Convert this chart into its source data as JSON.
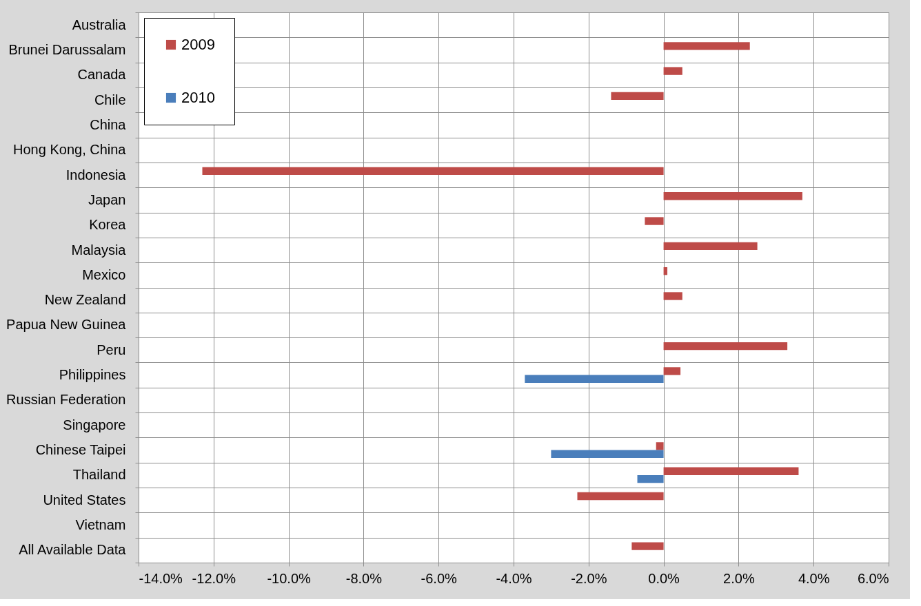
{
  "chart_data": {
    "type": "bar",
    "orientation": "horizontal",
    "categories": [
      "Australia",
      "Brunei Darussalam",
      "Canada",
      "Chile",
      "China",
      "Hong Kong, China",
      "Indonesia",
      "Japan",
      "Korea",
      "Malaysia",
      "Mexico",
      "New Zealand",
      "Papua New Guinea",
      "Peru",
      "Philippines",
      "Russian Federation",
      "Singapore",
      "Chinese Taipei",
      "Thailand",
      "United States",
      "Vietnam",
      "All Available Data"
    ],
    "series": [
      {
        "name": "2009",
        "color": "#be4b48",
        "values": [
          null,
          2.3,
          0.5,
          -1.4,
          null,
          null,
          -12.3,
          3.7,
          -0.5,
          2.5,
          0.1,
          0.5,
          null,
          3.3,
          0.45,
          null,
          null,
          -0.2,
          3.6,
          -2.3,
          null,
          -0.85
        ]
      },
      {
        "name": "2010",
        "color": "#4a7ebb",
        "values": [
          null,
          null,
          null,
          null,
          null,
          null,
          null,
          null,
          null,
          null,
          null,
          null,
          null,
          null,
          -3.7,
          null,
          null,
          -3.0,
          -0.7,
          null,
          null,
          null
        ]
      }
    ],
    "xlim": [
      -14,
      6
    ],
    "xticks": [
      {
        "value": -14,
        "label": "-14.0%"
      },
      {
        "value": -12,
        "label": "-12.0%"
      },
      {
        "value": -10,
        "label": "-10.0%"
      },
      {
        "value": -8,
        "label": "-8.0%"
      },
      {
        "value": -6,
        "label": "-6.0%"
      },
      {
        "value": -4,
        "label": "-4.0%"
      },
      {
        "value": -2,
        "label": "-2.0%"
      },
      {
        "value": 0,
        "label": "0.0%"
      },
      {
        "value": 2,
        "label": "2.0%"
      },
      {
        "value": 4,
        "label": "4.0%"
      },
      {
        "value": 6,
        "label": "6.0%"
      }
    ],
    "grid": true,
    "legend": "top left"
  }
}
